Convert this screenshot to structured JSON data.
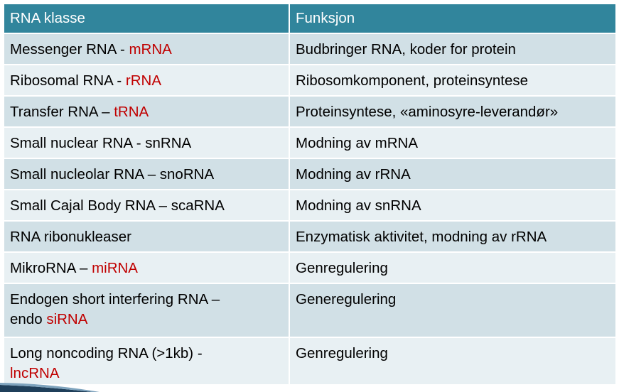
{
  "table": {
    "headers": [
      "RNA klasse",
      "Funksjon"
    ],
    "rows": [
      {
        "name_plain": "Messenger RNA - ",
        "name_abbr": "mRNA",
        "function": "Budbringer RNA, koder for protein"
      },
      {
        "name_plain": "Ribosomal RNA - ",
        "name_abbr": "rRNA",
        "function": "Ribosomkomponent, proteinsyntese"
      },
      {
        "name_plain": "Transfer RNA – ",
        "name_abbr": "tRNA",
        "function": "Proteinsyntese, «aminosyre-leverandør»"
      },
      {
        "name_plain": "Small nuclear RNA - snRNA",
        "name_abbr": "",
        "function": "Modning av mRNA"
      },
      {
        "name_plain": "Small nucleolar RNA – snoRNA",
        "name_abbr": "",
        "function": "Modning av rRNA"
      },
      {
        "name_plain": "Small Cajal Body RNA – scaRNA",
        "name_abbr": "",
        "function": "Modning av snRNA"
      },
      {
        "name_plain": "RNA ribonukleaser",
        "name_abbr": "",
        "function": "Enzymatisk aktivitet, modning av rRNA"
      },
      {
        "name_plain": "MikroRNA – ",
        "name_abbr": "miRNA",
        "function": "Genregulering"
      },
      {
        "name_line1": "Endogen short interfering RNA –",
        "name_plain": "endo ",
        "name_abbr": "siRNA",
        "function": "Generegulering"
      },
      {
        "name_line1": "Long noncoding RNA (>1kb) -",
        "name_plain": "",
        "name_abbr": "lncRNA",
        "function": "Genregulering"
      }
    ]
  },
  "colors": {
    "header": "#31859c",
    "row_dark": "#d1e0e6",
    "row_light": "#e8f0f3",
    "highlight": "#c00000"
  }
}
